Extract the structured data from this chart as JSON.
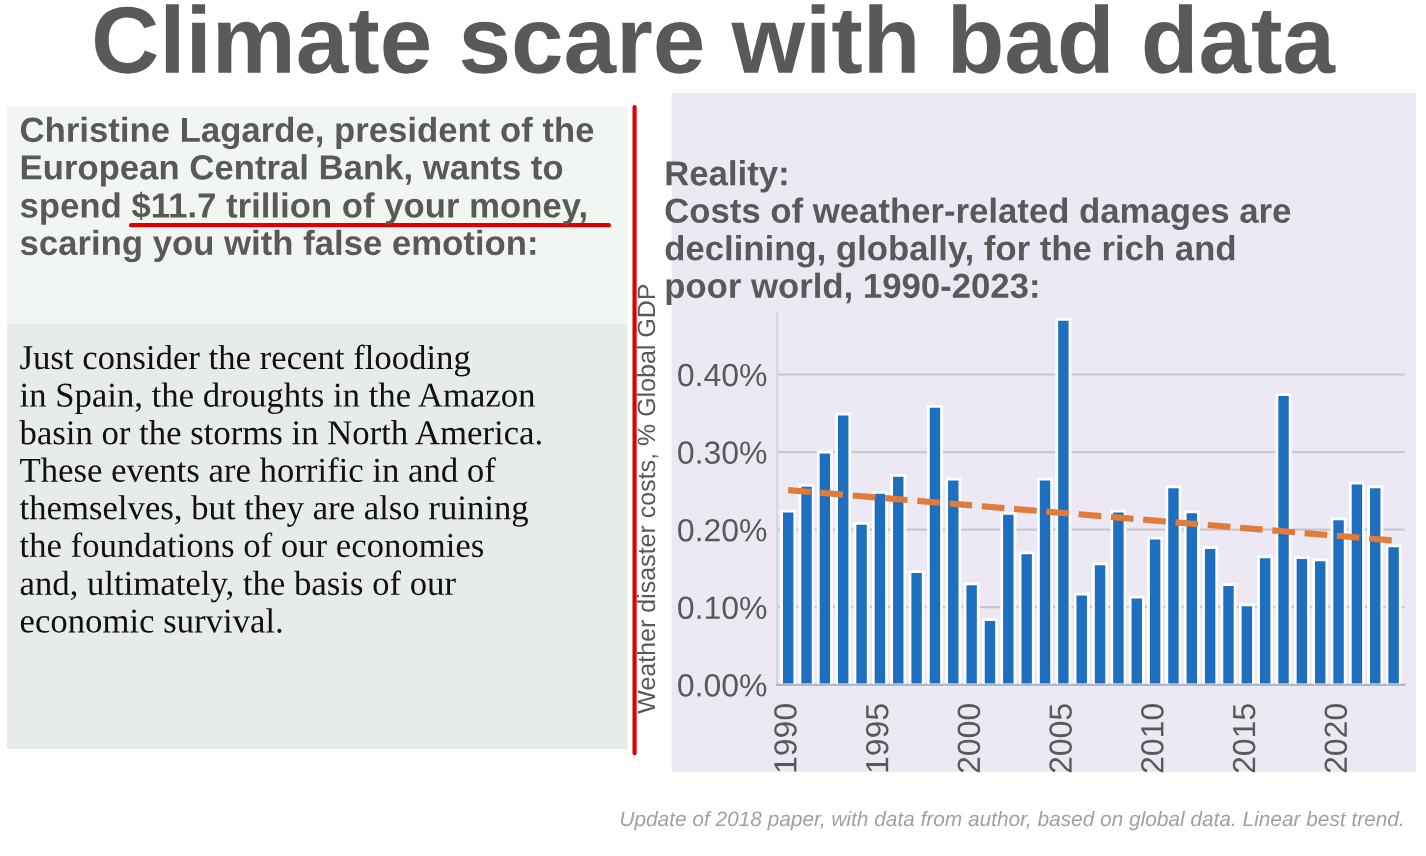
{
  "chart_data": [
    {
      "type": "other",
      "title": "Climate scare with bad data",
      "annotations": [
        "Christine Lagarde, president of the\nEuropean Central Bank, wants to\nspend $11.7 trillion of your money,\nscaring you with false emotion:",
        "Just consider the recent flooding\nin Spain, the droughts in the Amazon\nbasin or the storms in North America.\nThese events are horrific in and of\nthemselves, but they are also ruining\nthe foundations of our economies\nand, ultimately, the basis of our\neconomic survival."
      ]
    },
    {
      "type": "bar",
      "title": "Reality:\nCosts of weather-related damages are\ndeclining, globally, for the rich and\npoor world, 1990-2023:",
      "ylabel": "Weather disaster costs, % Global GDP",
      "x": [
        1990,
        1991,
        1992,
        1993,
        1994,
        1995,
        1996,
        1997,
        1998,
        1999,
        2000,
        2001,
        2002,
        2003,
        2004,
        2005,
        2006,
        2007,
        2008,
        2009,
        2010,
        2011,
        2012,
        2013,
        2014,
        2015,
        2016,
        2017,
        2018,
        2019,
        2020,
        2021,
        2022,
        2023
      ],
      "series": [
        {
          "type": "bar",
          "color": "#1f6fc0",
          "values": [
            0.224,
            0.257,
            0.3,
            0.349,
            0.208,
            0.248,
            0.27,
            0.146,
            0.359,
            0.265,
            0.13,
            0.084,
            0.221,
            0.17,
            0.265,
            0.471,
            0.117,
            0.156,
            0.224,
            0.113,
            0.189,
            0.255,
            0.223,
            0.177,
            0.129,
            0.103,
            0.165,
            0.374,
            0.164,
            0.161,
            0.214,
            0.26,
            0.255,
            0.179
          ]
        },
        {
          "type": "line",
          "color": "#e07b39",
          "line_style": "dashed",
          "x": [
            1990,
            2023
          ],
          "values": [
            0.251,
            0.186
          ]
        }
      ],
      "xlim": [
        1989.4,
        2023.6
      ],
      "xticks": [
        1990,
        1995,
        2000,
        2005,
        2010,
        2015,
        2020
      ],
      "ylim": [
        0,
        0.48
      ],
      "yticks": [
        {
          "value": 0,
          "label": "0.00%"
        },
        {
          "value": 0.1,
          "label": "0.10%"
        },
        {
          "value": 0.2,
          "label": "0.20%"
        },
        {
          "value": 0.3,
          "label": "0.30%"
        },
        {
          "value": 0.4,
          "label": "0.40%"
        }
      ],
      "grid": "y",
      "annotations": [
        "Update of 2018 paper, with data from author, based on global data. Linear best trend."
      ]
    }
  ]
}
